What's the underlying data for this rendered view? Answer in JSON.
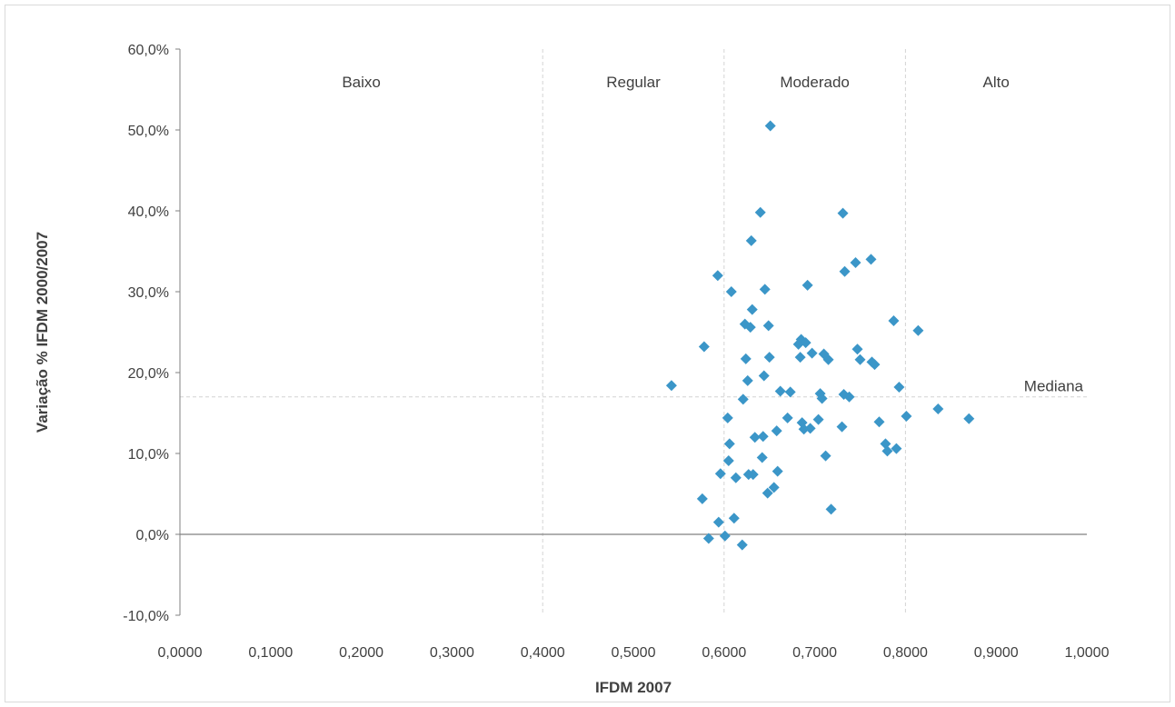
{
  "chart_data": {
    "type": "scatter",
    "title": "",
    "xlabel": "IFDM 2007",
    "ylabel": "Variação % IFDM 2000/2007",
    "xlim": [
      0,
      1
    ],
    "ylim": [
      -10,
      60
    ],
    "x_ticks": [
      0,
      0.1,
      0.2,
      0.3,
      0.4,
      0.5,
      0.6,
      0.7,
      0.8,
      0.9,
      1.0
    ],
    "x_tick_labels": [
      "0,0000",
      "0,1000",
      "0,2000",
      "0,3000",
      "0,4000",
      "0,5000",
      "0,6000",
      "0,7000",
      "0,8000",
      "0,9000",
      "1,0000"
    ],
    "y_ticks": [
      -10,
      0,
      10,
      20,
      30,
      40,
      50,
      60
    ],
    "y_tick_labels": [
      "-10,0%",
      "0,0%",
      "10,0%",
      "20,0%",
      "30,0%",
      "40,0%",
      "50,0%",
      "60,0%"
    ],
    "grid": false,
    "marker_color": "#3b96c8",
    "zone_boundaries": [
      0.4,
      0.6,
      0.8
    ],
    "zones": [
      {
        "label": "Baixo",
        "x_center": 0.2
      },
      {
        "label": "Regular",
        "x_center": 0.5
      },
      {
        "label": "Moderado",
        "x_center": 0.7
      },
      {
        "label": "Alto",
        "x_center": 0.9
      }
    ],
    "median": {
      "label": "Mediana",
      "y": 17.0
    },
    "series": [
      {
        "points": [
          [
            0.542,
            18.4
          ],
          [
            0.576,
            4.4
          ],
          [
            0.578,
            23.2
          ],
          [
            0.583,
            -0.5
          ],
          [
            0.593,
            32.0
          ],
          [
            0.594,
            1.5
          ],
          [
            0.596,
            7.5
          ],
          [
            0.601,
            -0.2
          ],
          [
            0.604,
            14.4
          ],
          [
            0.605,
            9.1
          ],
          [
            0.606,
            11.2
          ],
          [
            0.608,
            30.0
          ],
          [
            0.611,
            2.0
          ],
          [
            0.613,
            7.0
          ],
          [
            0.62,
            -1.3
          ],
          [
            0.621,
            16.7
          ],
          [
            0.623,
            26.0
          ],
          [
            0.624,
            21.7
          ],
          [
            0.626,
            19.0
          ],
          [
            0.627,
            7.4
          ],
          [
            0.629,
            25.6
          ],
          [
            0.63,
            36.3
          ],
          [
            0.631,
            27.8
          ],
          [
            0.632,
            7.4
          ],
          [
            0.634,
            12.0
          ],
          [
            0.64,
            39.8
          ],
          [
            0.642,
            9.5
          ],
          [
            0.643,
            12.1
          ],
          [
            0.644,
            19.6
          ],
          [
            0.645,
            30.3
          ],
          [
            0.648,
            5.1
          ],
          [
            0.649,
            25.8
          ],
          [
            0.65,
            21.9
          ],
          [
            0.651,
            50.5
          ],
          [
            0.655,
            5.8
          ],
          [
            0.658,
            12.8
          ],
          [
            0.659,
            7.8
          ],
          [
            0.662,
            17.7
          ],
          [
            0.67,
            14.4
          ],
          [
            0.673,
            17.6
          ],
          [
            0.682,
            23.5
          ],
          [
            0.684,
            21.9
          ],
          [
            0.685,
            24.1
          ],
          [
            0.686,
            13.8
          ],
          [
            0.688,
            13.0
          ],
          [
            0.69,
            23.7
          ],
          [
            0.692,
            30.8
          ],
          [
            0.695,
            13.1
          ],
          [
            0.697,
            22.4
          ],
          [
            0.704,
            14.2
          ],
          [
            0.706,
            17.4
          ],
          [
            0.708,
            16.8
          ],
          [
            0.71,
            22.3
          ],
          [
            0.712,
            9.7
          ],
          [
            0.715,
            21.6
          ],
          [
            0.718,
            3.1
          ],
          [
            0.73,
            13.3
          ],
          [
            0.731,
            39.7
          ],
          [
            0.732,
            17.3
          ],
          [
            0.733,
            32.5
          ],
          [
            0.738,
            17.0
          ],
          [
            0.745,
            33.6
          ],
          [
            0.747,
            22.9
          ],
          [
            0.75,
            21.6
          ],
          [
            0.762,
            34.0
          ],
          [
            0.763,
            21.3
          ],
          [
            0.766,
            21.0
          ],
          [
            0.771,
            13.9
          ],
          [
            0.778,
            11.2
          ],
          [
            0.78,
            10.3
          ],
          [
            0.787,
            26.4
          ],
          [
            0.79,
            10.6
          ],
          [
            0.793,
            18.2
          ],
          [
            0.801,
            14.6
          ],
          [
            0.814,
            25.2
          ],
          [
            0.836,
            15.5
          ],
          [
            0.87,
            14.3
          ]
        ]
      }
    ]
  }
}
